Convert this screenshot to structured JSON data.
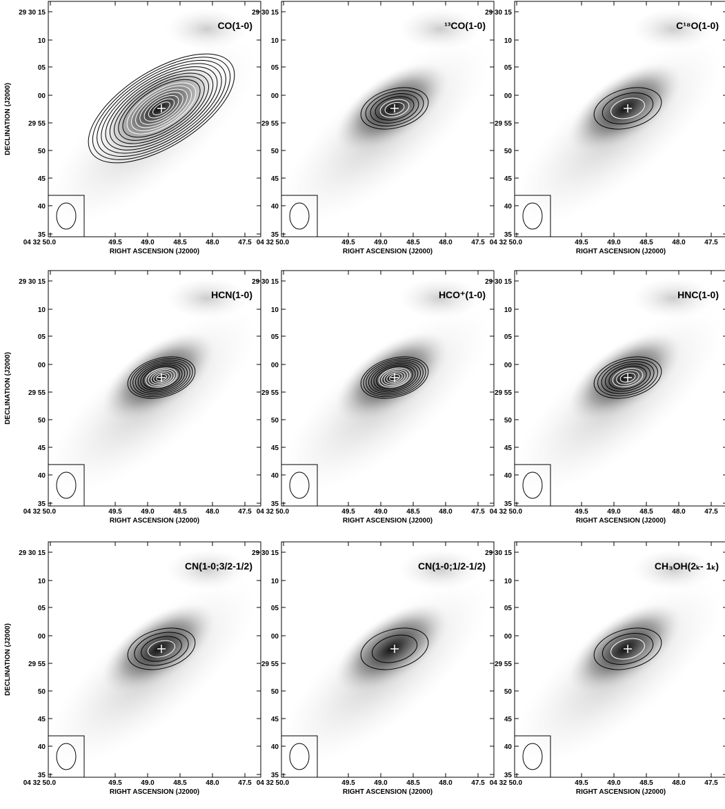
{
  "panels": [
    {
      "title": "CO(1-0)"
    },
    {
      "title": "¹³CO(1-0)"
    },
    {
      "title": "C¹⁸O(1-0)"
    },
    {
      "title": "HCN(1-0)"
    },
    {
      "title": "HCO⁺(1-0)"
    },
    {
      "title": "HNC(1-0)"
    },
    {
      "title": "CN(1-0;3/2-1/2)"
    },
    {
      "title": "CN(1-0;1/2-1/2)"
    },
    {
      "title": "CH₃OH(2ₖ- 1ₖ)"
    }
  ],
  "xaxis": {
    "label": "RIGHT ASCENSION (J2000)",
    "ticks": [
      "04 32 50.0",
      "49.5",
      "49.0",
      "48.5",
      "48.0",
      "47.5"
    ]
  },
  "yaxis": {
    "label": "DECLINATION (J2000)",
    "ticks": [
      "29 30 15",
      "10",
      "05",
      "00",
      "29 55",
      "50",
      "45",
      "40",
      "35"
    ]
  }
}
